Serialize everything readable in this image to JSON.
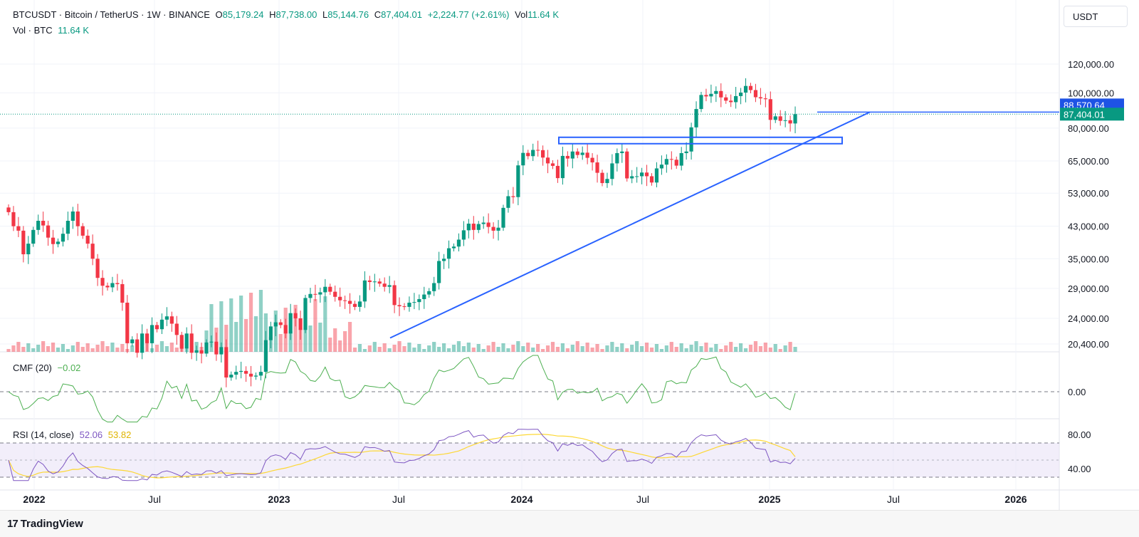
{
  "header": {
    "symbol_line": "BTCUSDT · Bitcoin / TetherUS · 1W · BINANCE",
    "o_label": "O",
    "o_value": "85,179.24",
    "h_label": "H",
    "h_value": "87,738.00",
    "l_label": "L",
    "l_value": "85,144.76",
    "c_label": "C",
    "c_value": "87,404.01",
    "change": "+2,224.77 (+2.61%)",
    "vol_label": "Vol",
    "vol_value": "11.64 K",
    "vol_line_label": "Vol · BTC",
    "vol_line_value": "11.64 K"
  },
  "currency_box": "USDT",
  "price_axis": {
    "ticks": [
      "120,000.00",
      "100,000.00",
      "80,000.00",
      "65,000.00",
      "53,000.00",
      "43,000.00",
      "35,000.00",
      "29,000.00",
      "24,000.00",
      "20,400.00"
    ],
    "tick_values": [
      120000,
      100000,
      80000,
      65000,
      53000,
      43000,
      35000,
      29000,
      24000,
      20400
    ],
    "line_price_label": "88,570.64",
    "last_price_label": "87,404.01"
  },
  "time_axis": [
    "2022",
    "Jul",
    "2023",
    "Jul",
    "2024",
    "Jul",
    "2025",
    "Jul",
    "2026"
  ],
  "cmf": {
    "label": "CMF (20)",
    "value": "−0.02",
    "zero_tick": "0.00"
  },
  "rsi": {
    "label": "RSI (14, close)",
    "value": "52.06",
    "ma_value": "53.82",
    "ticks": [
      "80.00",
      "40.00"
    ]
  },
  "branding": {
    "name": "TradingView",
    "mark": "17"
  },
  "colors": {
    "up": "#089981",
    "down": "#f23645",
    "trendline": "#2962ff",
    "cmf": "#4caf50",
    "rsi": "#7e57c2",
    "rsi_ma": "#fdd835",
    "band": "#e9e2f7"
  },
  "chart_data": [
    {
      "type": "candlestick",
      "title": "BTCUSDT · Bitcoin / TetherUS · 1W · BINANCE",
      "y_scale": "log",
      "ylim": [
        20400,
        125000
      ],
      "x": [
        "2022",
        "Jul",
        "2023",
        "Jul",
        "2024",
        "Jul",
        "2025",
        "Jul",
        "2026"
      ],
      "last_close": 87404.01,
      "approx_weekly_closes": [
        47000,
        43000,
        41800,
        36000,
        38500,
        42000,
        44500,
        43200,
        40000,
        38400,
        39000,
        41000,
        44500,
        47200,
        43000,
        40500,
        38500,
        35000,
        31000,
        29500,
        29200,
        30000,
        29800,
        26500,
        20500,
        21000,
        19300,
        21800,
        20500,
        23000,
        22400,
        23800,
        24300,
        23200,
        21600,
        19800,
        21800,
        19300,
        19600,
        19200,
        20600,
        20700,
        19100,
        20000,
        16500,
        16800,
        17100,
        17200,
        16900,
        16600,
        16700,
        17100,
        20900,
        22800,
        23400,
        23000,
        21800,
        24800,
        24000,
        22300,
        27300,
        28000,
        27900,
        28300,
        29300,
        28400,
        27500,
        26900,
        26800,
        26300,
        25800,
        26700,
        30500,
        30200,
        30300,
        29900,
        29300,
        29600,
        26100,
        25900,
        25800,
        26500,
        26600,
        27100,
        27900,
        28500,
        30000,
        34500,
        35000,
        37400,
        37800,
        39500,
        41900,
        43700,
        42000,
        43600,
        44000,
        42800,
        41800,
        42600,
        48300,
        52000,
        51700,
        63200,
        68400,
        67000,
        69700,
        69600,
        66400,
        64000,
        63000,
        58300,
        67100,
        66000,
        69000,
        67500,
        68500,
        66300,
        64400,
        60300,
        56500,
        58000,
        64000,
        68300,
        69000,
        58200,
        59000,
        59000,
        60400,
        59000,
        56700,
        62000,
        63500,
        65800,
        65500,
        63100,
        68300,
        69000,
        80400,
        90300,
        98700,
        97800,
        99400,
        101200,
        97200,
        95200,
        94300,
        98000,
        100200,
        104500,
        101800,
        97300,
        96600,
        96100,
        84300,
        86200,
        83800,
        84100,
        82400,
        87400
      ],
      "volume_relative": "volume histogram along bottom of price pane"
    },
    {
      "type": "line",
      "name": "CMF (20)",
      "last_value": -0.02,
      "zero_line": 0.0
    },
    {
      "type": "line",
      "name": "RSI (14, close)",
      "last_value": 52.06,
      "ma_last_value": 53.82,
      "levels": [
        70,
        50,
        30
      ],
      "ticks": [
        80,
        40
      ]
    }
  ]
}
